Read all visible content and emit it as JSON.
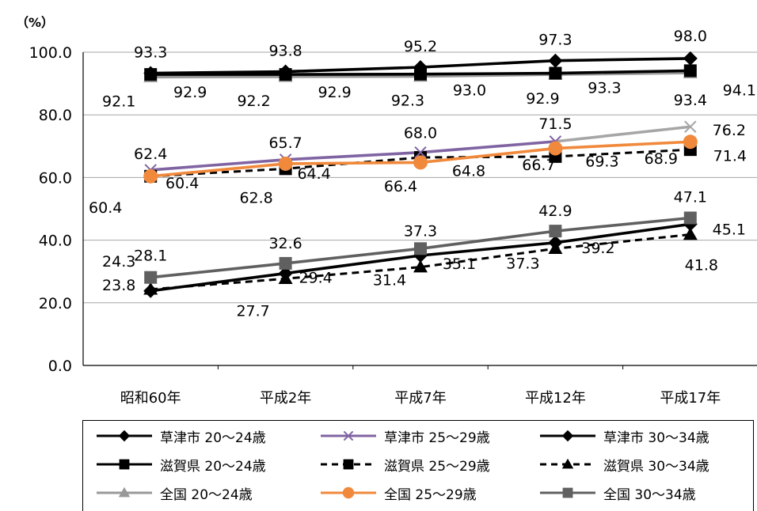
{
  "unit_label": "（%）",
  "chart_data": {
    "type": "line",
    "categories": [
      "昭和60年",
      "平成2年",
      "平成7年",
      "平成12年",
      "平成17年"
    ],
    "ylim": [
      0,
      100
    ],
    "yticks": [
      "0.0",
      "20.0",
      "40.0",
      "60.0",
      "80.0",
      "100.0"
    ],
    "grid": true,
    "legend_position": "bottom",
    "series": [
      {
        "name": "草津市 20～24歳",
        "values": [
          93.3,
          93.8,
          95.2,
          97.3,
          98.0
        ],
        "color": "#000000",
        "marker": "diamond",
        "dash": false
      },
      {
        "name": "滋賀県 20～24歳",
        "values": [
          92.9,
          92.9,
          93.0,
          93.3,
          94.1
        ],
        "color": "#000000",
        "marker": "square",
        "dash": false
      },
      {
        "name": "全国 20～24歳",
        "values": [
          92.1,
          92.2,
          92.3,
          92.9,
          93.4
        ],
        "color": "#999999",
        "marker": "triangle",
        "dash": false
      },
      {
        "name": "草津市 25～29歳",
        "values": [
          62.4,
          65.7,
          68.0,
          71.5,
          76.2
        ],
        "color": "#8064a2",
        "marker": "x",
        "dash": false,
        "upper_color": "#a6a6a6"
      },
      {
        "name": "滋賀県 25～29歳",
        "values": [
          60.4,
          62.8,
          66.4,
          66.7,
          68.9
        ],
        "color": "#000000",
        "marker": "square",
        "dash": true
      },
      {
        "name": "全国 25～29歳",
        "values": [
          60.4,
          64.4,
          64.8,
          69.3,
          71.4
        ],
        "color": "#f0893b",
        "marker": "circle",
        "dash": false
      },
      {
        "name": "草津市 30～34歳",
        "values": [
          23.8,
          29.4,
          35.1,
          39.2,
          45.1
        ],
        "color": "#000000",
        "marker": "diamond",
        "dash": false
      },
      {
        "name": "滋賀県 30～34歳",
        "values": [
          24.3,
          27.7,
          31.4,
          37.3,
          41.8
        ],
        "color": "#000000",
        "marker": "triangle",
        "dash": true
      },
      {
        "name": "全国 30～34歳",
        "values": [
          28.1,
          32.6,
          37.3,
          42.9,
          47.1
        ],
        "color": "#606060",
        "marker": "square",
        "dash": false
      }
    ],
    "data_labels": [
      {
        "text": "93.3",
        "series": 0,
        "point": 0
      },
      {
        "text": "93.8",
        "series": 0,
        "point": 1
      },
      {
        "text": "95.2",
        "series": 0,
        "point": 2
      },
      {
        "text": "97.3",
        "series": 0,
        "point": 3
      },
      {
        "text": "98.0",
        "series": 0,
        "point": 4
      },
      {
        "text": "92.9",
        "series": 1,
        "point": 0
      },
      {
        "text": "92.9",
        "series": 1,
        "point": 1
      },
      {
        "text": "93.0",
        "series": 1,
        "point": 2
      },
      {
        "text": "93.3",
        "series": 1,
        "point": 3
      },
      {
        "text": "94.1",
        "series": 1,
        "point": 4
      },
      {
        "text": "92.1",
        "series": 2,
        "point": 0
      },
      {
        "text": "92.2",
        "series": 2,
        "point": 1
      },
      {
        "text": "92.3",
        "series": 2,
        "point": 2
      },
      {
        "text": "92.9",
        "series": 2,
        "point": 3
      },
      {
        "text": "93.4",
        "series": 2,
        "point": 4
      },
      {
        "text": "62.4",
        "series": 3,
        "point": 0
      },
      {
        "text": "65.7",
        "series": 3,
        "point": 1
      },
      {
        "text": "68.0",
        "series": 3,
        "point": 2
      },
      {
        "text": "71.5",
        "series": 3,
        "point": 3
      },
      {
        "text": "76.2",
        "series": 3,
        "point": 4
      },
      {
        "text": "60.4",
        "series": 4,
        "point": 0
      },
      {
        "text": "62.8",
        "series": 4,
        "point": 1
      },
      {
        "text": "66.4",
        "series": 4,
        "point": 2
      },
      {
        "text": "66.7",
        "series": 4,
        "point": 3
      },
      {
        "text": "68.9",
        "series": 4,
        "point": 4
      },
      {
        "text": "60.4",
        "series": 5,
        "point": 0
      },
      {
        "text": "64.4",
        "series": 5,
        "point": 1
      },
      {
        "text": "64.8",
        "series": 5,
        "point": 2
      },
      {
        "text": "69.3",
        "series": 5,
        "point": 3
      },
      {
        "text": "71.4",
        "series": 5,
        "point": 4
      },
      {
        "text": "23.8",
        "series": 6,
        "point": 0
      },
      {
        "text": "29.4",
        "series": 6,
        "point": 1
      },
      {
        "text": "35.1",
        "series": 6,
        "point": 2
      },
      {
        "text": "39.2",
        "series": 6,
        "point": 3
      },
      {
        "text": "45.1",
        "series": 6,
        "point": 4
      },
      {
        "text": "24.3",
        "series": 7,
        "point": 0
      },
      {
        "text": "27.7",
        "series": 7,
        "point": 1
      },
      {
        "text": "31.4",
        "series": 7,
        "point": 2
      },
      {
        "text": "37.3",
        "series": 7,
        "point": 3
      },
      {
        "text": "41.8",
        "series": 7,
        "point": 4
      },
      {
        "text": "28.1",
        "series": 8,
        "point": 0
      },
      {
        "text": "32.6",
        "series": 8,
        "point": 1
      },
      {
        "text": "37.3",
        "series": 8,
        "point": 2
      },
      {
        "text": "42.9",
        "series": 8,
        "point": 3
      },
      {
        "text": "47.1",
        "series": 8,
        "point": 4
      }
    ]
  }
}
